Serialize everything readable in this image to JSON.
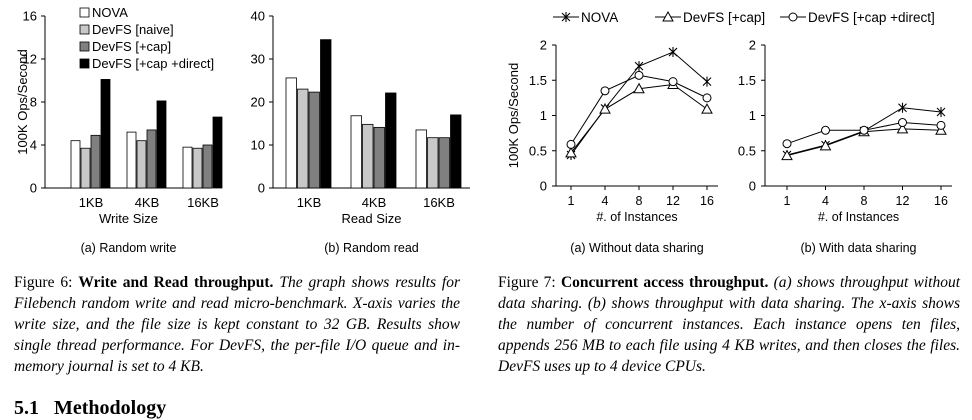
{
  "figure6": {
    "legend": [
      "NOVA",
      "DevFS [naive]",
      "DevFS [+cap]",
      "DevFS [+cap +direct]"
    ],
    "caption": {
      "label": "Figure 6:",
      "title": "Write and Read throughput.",
      "text": "The graph shows results for Filebench random write and read micro-benchmark. X-axis varies the write size, and the file size is kept constant to 32 GB. Results show single thread performance. For DevFS, the per-file I/O queue and in-memory journal is set to 4 KB."
    }
  },
  "figure7": {
    "legend": [
      "NOVA",
      "DevFS [+cap]",
      "DevFS [+cap +direct]"
    ],
    "caption": {
      "label": "Figure 7:",
      "title": "Concurrent access throughput.",
      "text": "(a) shows throughput without data sharing. (b) shows throughput with data sharing. The x-axis shows the number of concurrent instances. Each instance opens ten files, appends 256 MB to each file using 4 KB writes, and then closes the files. DevFS uses up to 4 device CPUs."
    }
  },
  "section": {
    "number": "5.1",
    "title": "Methodology"
  },
  "chart_data": [
    {
      "type": "bar",
      "subcaption": "(a) Random write",
      "categories": [
        "1KB",
        "4KB",
        "16KB"
      ],
      "xlabel": "Write Size",
      "ylabel": "100K Ops/Second",
      "ylim": [
        0,
        16
      ],
      "yticks": [
        0,
        4,
        8,
        12,
        16
      ],
      "series": [
        {
          "name": "NOVA",
          "color": "#ffffff",
          "values": [
            4.4,
            5.2,
            3.8
          ]
        },
        {
          "name": "DevFS [naive]",
          "color": "#c8c8c8",
          "values": [
            3.7,
            4.4,
            3.7
          ]
        },
        {
          "name": "DevFS [+cap]",
          "color": "#808080",
          "values": [
            4.9,
            5.4,
            4.0
          ]
        },
        {
          "name": "DevFS [+cap +direct]",
          "color": "#000000",
          "values": [
            10.1,
            8.1,
            6.6
          ]
        }
      ]
    },
    {
      "type": "bar",
      "subcaption": "(b) Random read",
      "categories": [
        "1KB",
        "4KB",
        "16KB"
      ],
      "xlabel": "Read Size",
      "ylabel": "",
      "ylim": [
        0,
        40
      ],
      "yticks": [
        0,
        10,
        20,
        30,
        40
      ],
      "series": [
        {
          "name": "NOVA",
          "color": "#ffffff",
          "values": [
            25.6,
            16.8,
            13.5
          ]
        },
        {
          "name": "DevFS [naive]",
          "color": "#c8c8c8",
          "values": [
            23.0,
            14.8,
            11.7
          ]
        },
        {
          "name": "DevFS [+cap]",
          "color": "#808080",
          "values": [
            22.3,
            14.1,
            11.7
          ]
        },
        {
          "name": "DevFS [+cap +direct]",
          "color": "#000000",
          "values": [
            34.5,
            22.1,
            17.0
          ]
        }
      ]
    },
    {
      "type": "line",
      "subcaption": "(a) Without data sharing",
      "x": [
        "1",
        "4",
        "8",
        "12",
        "16"
      ],
      "xlabel": "#. of Instances",
      "ylabel": "100K Ops/Second",
      "ylim": [
        0,
        2
      ],
      "yticks": [
        "0",
        "0.5",
        "1",
        "1.5",
        "2"
      ],
      "series": [
        {
          "name": "NOVA",
          "marker": "star",
          "values": [
            0.44,
            1.1,
            1.7,
            1.9,
            1.48
          ]
        },
        {
          "name": "DevFS [+cap]",
          "marker": "triangle",
          "values": [
            0.47,
            1.09,
            1.38,
            1.44,
            1.09
          ]
        },
        {
          "name": "DevFS [+cap +direct]",
          "marker": "circle",
          "values": [
            0.59,
            1.35,
            1.57,
            1.48,
            1.25
          ]
        }
      ]
    },
    {
      "type": "line",
      "subcaption": "(b) With data sharing",
      "x": [
        "1",
        "4",
        "8",
        "12",
        "16"
      ],
      "xlabel": "#. of Instances",
      "ylabel": "",
      "ylim": [
        0,
        2
      ],
      "yticks": [
        "0",
        "0.5",
        "1",
        "1.5",
        "2"
      ],
      "series": [
        {
          "name": "NOVA",
          "marker": "star",
          "values": [
            0.44,
            0.58,
            0.78,
            1.11,
            1.05
          ]
        },
        {
          "name": "DevFS [+cap]",
          "marker": "triangle",
          "values": [
            0.43,
            0.57,
            0.77,
            0.81,
            0.79
          ]
        },
        {
          "name": "DevFS [+cap +direct]",
          "marker": "circle",
          "values": [
            0.6,
            0.79,
            0.79,
            0.9,
            0.86
          ]
        }
      ]
    }
  ]
}
